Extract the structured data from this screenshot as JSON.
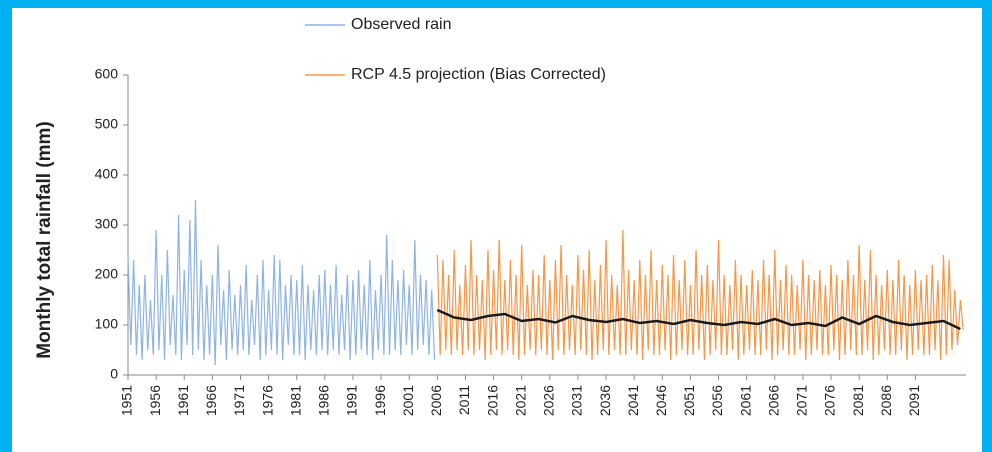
{
  "chart_data": {
    "type": "line",
    "y_label": "Monthly  total rainfall  (mm)",
    "xlim": [
      1951,
      2100
    ],
    "ylim": [
      0,
      600
    ],
    "yticks": [
      0,
      100,
      200,
      300,
      400,
      500,
      600
    ],
    "xticks": [
      1951,
      1956,
      1961,
      1966,
      1971,
      1976,
      1981,
      1986,
      1991,
      1996,
      2001,
      2006,
      2011,
      2016,
      2021,
      2026,
      2031,
      2036,
      2041,
      2046,
      2051,
      2056,
      2061,
      2066,
      2071,
      2076,
      2081,
      2086,
      2091
    ],
    "series": [
      {
        "name": "Observed rain",
        "color": "#8fb4e3",
        "x": [
          1951,
          1951.5,
          1952,
          1952.5,
          1953,
          1953.5,
          1954,
          1954.5,
          1955,
          1955.5,
          1956,
          1956.5,
          1957,
          1957.5,
          1958,
          1958.5,
          1959,
          1959.5,
          1960,
          1960.5,
          1961,
          1961.5,
          1962,
          1962.5,
          1963,
          1963.5,
          1964,
          1964.5,
          1965,
          1965.5,
          1966,
          1966.5,
          1967,
          1967.5,
          1968,
          1968.5,
          1969,
          1969.5,
          1970,
          1970.5,
          1971,
          1971.5,
          1972,
          1972.5,
          1973,
          1973.5,
          1974,
          1974.5,
          1975,
          1975.5,
          1976,
          1976.5,
          1977,
          1977.5,
          1978,
          1978.5,
          1979,
          1979.5,
          1980,
          1980.5,
          1981,
          1981.5,
          1982,
          1982.5,
          1983,
          1983.5,
          1984,
          1984.5,
          1985,
          1985.5,
          1986,
          1986.5,
          1987,
          1987.5,
          1988,
          1988.5,
          1989,
          1989.5,
          1990,
          1990.5,
          1991,
          1991.5,
          1992,
          1992.5,
          1993,
          1993.5,
          1994,
          1994.5,
          1995,
          1995.5,
          1996,
          1996.5,
          1997,
          1997.5,
          1998,
          1998.5,
          1999,
          1999.5,
          2000,
          2000.5,
          2001,
          2001.5,
          2002,
          2002.5,
          2003,
          2003.5,
          2004,
          2004.5,
          2005,
          2005.5
        ],
        "values": [
          240,
          60,
          230,
          40,
          180,
          30,
          200,
          50,
          150,
          40,
          290,
          50,
          200,
          30,
          250,
          60,
          160,
          40,
          320,
          30,
          210,
          60,
          310,
          40,
          350,
          50,
          230,
          30,
          180,
          40,
          200,
          20,
          260,
          60,
          170,
          30,
          210,
          50,
          160,
          40,
          180,
          50,
          220,
          40,
          150,
          60,
          200,
          30,
          230,
          40,
          170,
          50,
          240,
          40,
          230,
          30,
          180,
          60,
          200,
          40,
          190,
          40,
          220,
          30,
          180,
          50,
          170,
          40,
          200,
          50,
          210,
          40,
          180,
          50,
          220,
          40,
          160,
          50,
          200,
          30,
          190,
          40,
          210,
          50,
          180,
          40,
          230,
          30,
          170,
          50,
          200,
          40,
          280,
          40,
          230,
          50,
          190,
          40,
          210,
          60,
          180,
          40,
          270,
          50,
          200,
          60,
          190,
          40,
          170,
          30
        ]
      },
      {
        "name": "RCP 4.5 projection (Bias Corrected)",
        "color": "#f79646",
        "x": [
          2006,
          2006.5,
          2007,
          2007.5,
          2008,
          2008.5,
          2009,
          2009.5,
          2010,
          2010.5,
          2011,
          2011.5,
          2012,
          2012.5,
          2013,
          2013.5,
          2014,
          2014.5,
          2015,
          2015.5,
          2016,
          2016.5,
          2017,
          2017.5,
          2018,
          2018.5,
          2019,
          2019.5,
          2020,
          2020.5,
          2021,
          2021.5,
          2022,
          2022.5,
          2023,
          2023.5,
          2024,
          2024.5,
          2025,
          2025.5,
          2026,
          2026.5,
          2027,
          2027.5,
          2028,
          2028.5,
          2029,
          2029.5,
          2030,
          2030.5,
          2031,
          2031.5,
          2032,
          2032.5,
          2033,
          2033.5,
          2034,
          2034.5,
          2035,
          2035.5,
          2036,
          2036.5,
          2037,
          2037.5,
          2038,
          2038.5,
          2039,
          2039.5,
          2040,
          2040.5,
          2041,
          2041.5,
          2042,
          2042.5,
          2043,
          2043.5,
          2044,
          2044.5,
          2045,
          2045.5,
          2046,
          2046.5,
          2047,
          2047.5,
          2048,
          2048.5,
          2049,
          2049.5,
          2050,
          2050.5,
          2051,
          2051.5,
          2052,
          2052.5,
          2053,
          2053.5,
          2054,
          2054.5,
          2055,
          2055.5,
          2056,
          2056.5,
          2057,
          2057.5,
          2058,
          2058.5,
          2059,
          2059.5,
          2060,
          2060.5,
          2061,
          2061.5,
          2062,
          2062.5,
          2063,
          2063.5,
          2064,
          2064.5,
          2065,
          2065.5,
          2066,
          2066.5,
          2067,
          2067.5,
          2068,
          2068.5,
          2069,
          2069.5,
          2070,
          2070.5,
          2071,
          2071.5,
          2072,
          2072.5,
          2073,
          2073.5,
          2074,
          2074.5,
          2075,
          2075.5,
          2076,
          2076.5,
          2077,
          2077.5,
          2078,
          2078.5,
          2079,
          2079.5,
          2080,
          2080.5,
          2081,
          2081.5,
          2082,
          2082.5,
          2083,
          2083.5,
          2084,
          2084.5,
          2085,
          2085.5,
          2086,
          2086.5,
          2087,
          2087.5,
          2088,
          2088.5,
          2089,
          2089.5,
          2090,
          2090.5,
          2091,
          2091.5,
          2092,
          2092.5,
          2093,
          2093.5,
          2094,
          2094.5,
          2095,
          2095.5,
          2096,
          2096.5,
          2097,
          2097.5,
          2098,
          2098.5,
          2099,
          2099.5
        ],
        "values": [
          240,
          40,
          230,
          50,
          200,
          40,
          250,
          50,
          180,
          40,
          220,
          50,
          270,
          40,
          200,
          50,
          190,
          30,
          250,
          40,
          210,
          50,
          270,
          40,
          190,
          50,
          230,
          40,
          200,
          30,
          260,
          40,
          180,
          50,
          210,
          40,
          200,
          50,
          240,
          40,
          190,
          30,
          230,
          50,
          260,
          40,
          200,
          50,
          180,
          40,
          240,
          50,
          210,
          40,
          250,
          30,
          190,
          40,
          220,
          50,
          270,
          40,
          200,
          50,
          180,
          40,
          290,
          40,
          210,
          50,
          190,
          40,
          230,
          30,
          200,
          50,
          250,
          40,
          190,
          40,
          220,
          50,
          200,
          30,
          240,
          40,
          190,
          50,
          230,
          40,
          180,
          40,
          250,
          50,
          200,
          30,
          220,
          40,
          190,
          50,
          270,
          40,
          200,
          40,
          180,
          50,
          230,
          30,
          200,
          40,
          180,
          50,
          210,
          40,
          190,
          40,
          230,
          50,
          200,
          30,
          250,
          40,
          190,
          50,
          220,
          40,
          200,
          40,
          180,
          50,
          230,
          30,
          200,
          40,
          190,
          50,
          210,
          40,
          180,
          40,
          220,
          50,
          200,
          30,
          190,
          40,
          230,
          50,
          200,
          40,
          260,
          40,
          190,
          50,
          250,
          30,
          200,
          40,
          180,
          50,
          210,
          40,
          190,
          40,
          230,
          50,
          200,
          30,
          180,
          40,
          210,
          50,
          190,
          40,
          200,
          40,
          220,
          50,
          190,
          30,
          240,
          40,
          230,
          50,
          170,
          60,
          150,
          90
        ]
      },
      {
        "color": "#1a1a1a",
        "x": [
          2006,
          2009,
          2012,
          2015,
          2018,
          2021,
          2024,
          2027,
          2030,
          2033,
          2036,
          2039,
          2042,
          2045,
          2048,
          2051,
          2054,
          2057,
          2060,
          2063,
          2066,
          2069,
          2072,
          2075,
          2078,
          2081,
          2084,
          2087,
          2090,
          2093,
          2096,
          2099
        ],
        "values": [
          130,
          115,
          110,
          118,
          122,
          108,
          112,
          105,
          118,
          110,
          106,
          112,
          104,
          108,
          102,
          110,
          104,
          100,
          106,
          102,
          112,
          100,
          104,
          98,
          115,
          102,
          118,
          106,
          100,
          104,
          108,
          92
        ]
      }
    ]
  }
}
